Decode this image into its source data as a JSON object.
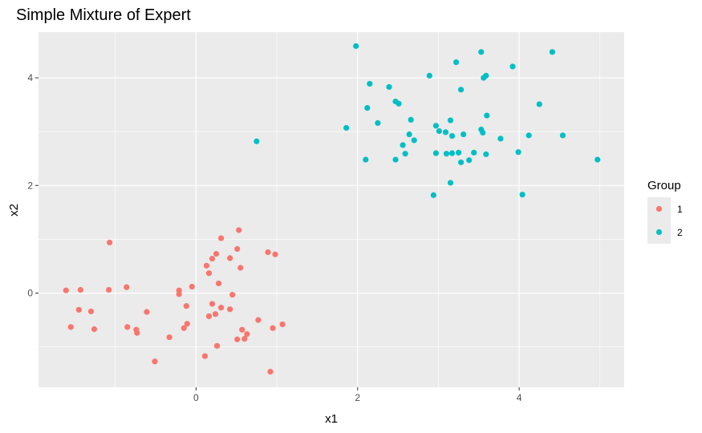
{
  "chart_data": {
    "type": "scatter",
    "title": "Simple Mixture of Expert",
    "xlabel": "x1",
    "ylabel": "x2",
    "xlim": [
      -1.95,
      5.3
    ],
    "ylim": [
      -1.75,
      4.85
    ],
    "x_ticks": [
      0,
      2,
      4
    ],
    "y_ticks": [
      0,
      2,
      4
    ],
    "grid": true,
    "legend": {
      "title": "Group",
      "placement": "right",
      "entries": [
        {
          "label": "1",
          "color": "#F8766D"
        },
        {
          "label": "2",
          "color": "#00BFC4"
        }
      ]
    },
    "series": [
      {
        "name": "1",
        "color": "#F8766D",
        "points": [
          [
            -1.61,
            0.05
          ],
          [
            -1.43,
            0.06
          ],
          [
            -1.45,
            -0.31
          ],
          [
            -1.3,
            -0.34
          ],
          [
            -1.55,
            -0.63
          ],
          [
            -1.26,
            -0.67
          ],
          [
            -1.08,
            0.06
          ],
          [
            -1.07,
            0.94
          ],
          [
            -0.86,
            0.11
          ],
          [
            -0.85,
            -0.63
          ],
          [
            -0.74,
            -0.68
          ],
          [
            -0.73,
            -0.74
          ],
          [
            -0.61,
            -0.35
          ],
          [
            -0.51,
            -1.27
          ],
          [
            -0.33,
            -0.82
          ],
          [
            -0.21,
            0.05
          ],
          [
            -0.21,
            -0.02
          ],
          [
            -0.15,
            -0.65
          ],
          [
            -0.12,
            -0.24
          ],
          [
            -0.11,
            -0.57
          ],
          [
            -0.05,
            0.12
          ],
          [
            0.11,
            -1.17
          ],
          [
            0.13,
            0.51
          ],
          [
            0.16,
            0.37
          ],
          [
            0.16,
            -0.43
          ],
          [
            0.2,
            -0.2
          ],
          [
            0.2,
            0.64
          ],
          [
            0.24,
            -0.39
          ],
          [
            0.25,
            0.73
          ],
          [
            0.26,
            -0.98
          ],
          [
            0.28,
            0.18
          ],
          [
            0.31,
            1.02
          ],
          [
            0.31,
            -0.27
          ],
          [
            0.42,
            -0.3
          ],
          [
            0.42,
            0.65
          ],
          [
            0.45,
            -0.03
          ],
          [
            0.51,
            0.82
          ],
          [
            0.51,
            -0.86
          ],
          [
            0.53,
            1.17
          ],
          [
            0.55,
            0.47
          ],
          [
            0.57,
            -0.68
          ],
          [
            0.6,
            -0.85
          ],
          [
            0.63,
            -0.76
          ],
          [
            0.77,
            -0.5
          ],
          [
            0.89,
            0.76
          ],
          [
            0.92,
            -1.46
          ],
          [
            0.95,
            -0.65
          ],
          [
            0.98,
            0.72
          ],
          [
            1.07,
            -0.58
          ]
        ]
      },
      {
        "name": "2",
        "color": "#00BFC4",
        "points": [
          [
            0.75,
            2.82
          ],
          [
            1.86,
            3.07
          ],
          [
            1.98,
            4.59
          ],
          [
            2.1,
            2.48
          ],
          [
            2.12,
            3.44
          ],
          [
            2.15,
            3.89
          ],
          [
            2.25,
            3.16
          ],
          [
            2.39,
            3.83
          ],
          [
            2.47,
            3.56
          ],
          [
            2.47,
            2.48
          ],
          [
            2.51,
            3.52
          ],
          [
            2.56,
            2.75
          ],
          [
            2.59,
            2.59
          ],
          [
            2.64,
            2.95
          ],
          [
            2.66,
            3.22
          ],
          [
            2.7,
            2.84
          ],
          [
            2.89,
            4.04
          ],
          [
            2.94,
            1.82
          ],
          [
            2.97,
            3.11
          ],
          [
            2.97,
            2.6
          ],
          [
            3.01,
            3.01
          ],
          [
            3.09,
            2.99
          ],
          [
            3.1,
            2.59
          ],
          [
            3.15,
            2.05
          ],
          [
            3.15,
            3.21
          ],
          [
            3.17,
            2.6
          ],
          [
            3.17,
            2.92
          ],
          [
            3.22,
            4.29
          ],
          [
            3.25,
            2.61
          ],
          [
            3.28,
            3.78
          ],
          [
            3.28,
            2.43
          ],
          [
            3.31,
            2.95
          ],
          [
            3.38,
            2.47
          ],
          [
            3.44,
            2.61
          ],
          [
            3.53,
            4.48
          ],
          [
            3.53,
            3.04
          ],
          [
            3.55,
            2.98
          ],
          [
            3.56,
            4.0
          ],
          [
            3.59,
            4.04
          ],
          [
            3.59,
            2.58
          ],
          [
            3.6,
            3.3
          ],
          [
            3.77,
            2.87
          ],
          [
            3.92,
            4.21
          ],
          [
            3.99,
            2.62
          ],
          [
            4.04,
            1.83
          ],
          [
            4.12,
            2.93
          ],
          [
            4.25,
            3.51
          ],
          [
            4.41,
            4.48
          ],
          [
            4.54,
            2.93
          ],
          [
            4.97,
            2.48
          ]
        ]
      }
    ]
  }
}
